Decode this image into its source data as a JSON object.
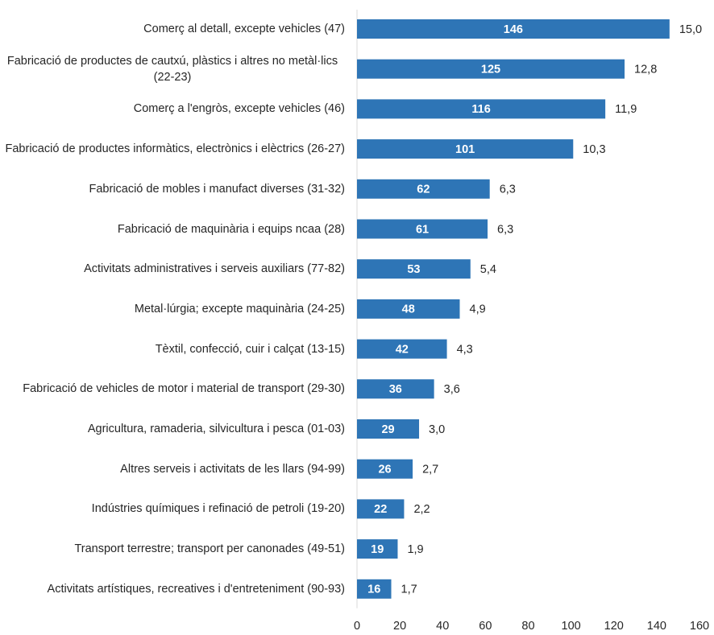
{
  "chart_data": {
    "type": "bar",
    "orientation": "horizontal",
    "color": "#2e75b6",
    "categories": [
      "Comerç al detall, excepte vehicles (47)",
      "Fabricació de productes de cautxú, plàstics i altres no metàl·lics (22-23)",
      "Comerç a l'engròs, excepte vehicles (46)",
      "Fabricació de productes informàtics, electrònics i elèctrics (26-27)",
      "Fabricació de mobles i manufact diverses (31-32)",
      "Fabricació de maquinària i equips ncaa (28)",
      "Activitats administratives i serveis auxiliars (77-82)",
      "Metal·lúrgia; excepte maquinària (24-25)",
      "Tèxtil, confecció, cuir i calçat (13-15)",
      "Fabricació de vehicles de motor i material de transport (29-30)",
      "Agricultura, ramaderia, silvicultura i pesca (01-03)",
      "Altres serveis i activitats de les llars (94-99)",
      "Indústries químiques i refinació de petroli (19-20)",
      "Transport terrestre; transport per canonades (49-51)",
      "Activitats artístiques, recreatives i d'entreteniment (90-93)"
    ],
    "values": [
      146,
      125,
      116,
      101,
      62,
      61,
      53,
      48,
      42,
      36,
      29,
      26,
      22,
      19,
      16
    ],
    "percentages": [
      15.0,
      12.8,
      11.9,
      10.3,
      6.3,
      6.3,
      5.4,
      4.9,
      4.3,
      3.6,
      3.0,
      2.7,
      2.2,
      1.9,
      1.7
    ],
    "percentage_labels": [
      "15,0",
      "12,8",
      "11,9",
      "10,3",
      "6,3",
      "6,3",
      "5,4",
      "4,9",
      "4,3",
      "3,6",
      "3,0",
      "2,7",
      "2,2",
      "1,9",
      "1,7"
    ],
    "xlim": [
      0,
      160
    ],
    "xticks": [
      0,
      20,
      40,
      60,
      80,
      100,
      120,
      140,
      160
    ],
    "grid": false
  }
}
